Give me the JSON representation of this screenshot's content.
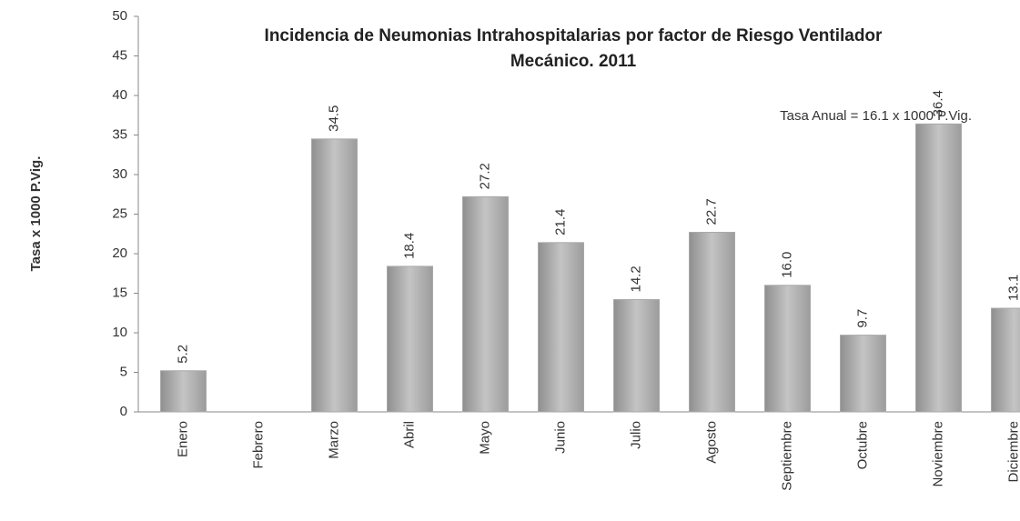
{
  "chart_data": {
    "type": "bar",
    "title": [
      "Incidencia de Neumonias Intrahospitalarias por factor de Riesgo Ventilador",
      "Mecánico. 2011"
    ],
    "y_label": "Tasa x 1000 P.Vig.",
    "annotation": "Tasa Anual = 16.1 x 1000 P.Vig.",
    "categories": [
      "Enero",
      "Febrero",
      "Marzo",
      "Abril",
      "Mayo",
      "Junio",
      "Julio",
      "Agosto",
      "Septiembre",
      "Octubre",
      "Noviembre",
      "Diciembre"
    ],
    "values": [
      5.2,
      null,
      34.5,
      18.4,
      27.2,
      21.4,
      14.2,
      22.7,
      16.0,
      9.7,
      36.4,
      13.1
    ],
    "value_labels": [
      "5.2",
      null,
      "34.5",
      "18.4",
      "27.2",
      "21.4",
      "14.2",
      "22.7",
      "16.0",
      "9.7",
      "36.4",
      "13.1"
    ],
    "color": "#a9a9a9",
    "ylim": [
      0,
      50
    ],
    "yticks": [
      0,
      5,
      10,
      15,
      20,
      25,
      30,
      35,
      40,
      45,
      50
    ],
    "grid": false
  }
}
